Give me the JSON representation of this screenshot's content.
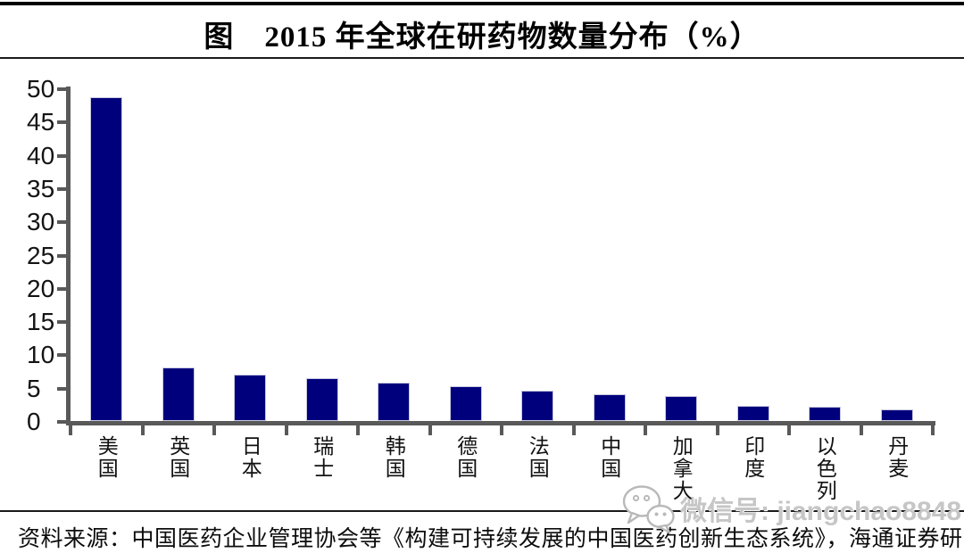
{
  "title": "图　2015 年全球在研药物数量分布（%）",
  "source_note": "资料来源：中国医药企业管理协会等《构建可持续发展的中国医药创新生态系统》，海通证券研究所",
  "watermark": {
    "icon": "wechat-icon",
    "text": "微信号: jiangchao8848"
  },
  "colors": {
    "bar_fill": "#00007C",
    "bar_edge": "#c9c9e0",
    "axis": "#595959",
    "title_text": "#000000",
    "watermark_text": "#c6c6c6",
    "background": "#ffffff"
  },
  "chart_data": {
    "type": "bar",
    "title": "图　2015 年全球在研药物数量分布（%）",
    "categories": [
      "美国",
      "英国",
      "日本",
      "瑞士",
      "韩国",
      "德国",
      "法国",
      "中国",
      "加拿大",
      "印度",
      "以色列",
      "丹麦"
    ],
    "values": [
      48.7,
      8.0,
      7.0,
      6.5,
      5.7,
      5.2,
      4.5,
      4.0,
      3.8,
      2.3,
      2.2,
      1.8
    ],
    "xlabel": "",
    "ylabel": "",
    "ylim": [
      0,
      50
    ],
    "yticks": [
      0,
      5,
      10,
      15,
      20,
      25,
      30,
      35,
      40,
      45,
      50
    ],
    "grid": false,
    "legend": null,
    "unit": "%"
  }
}
